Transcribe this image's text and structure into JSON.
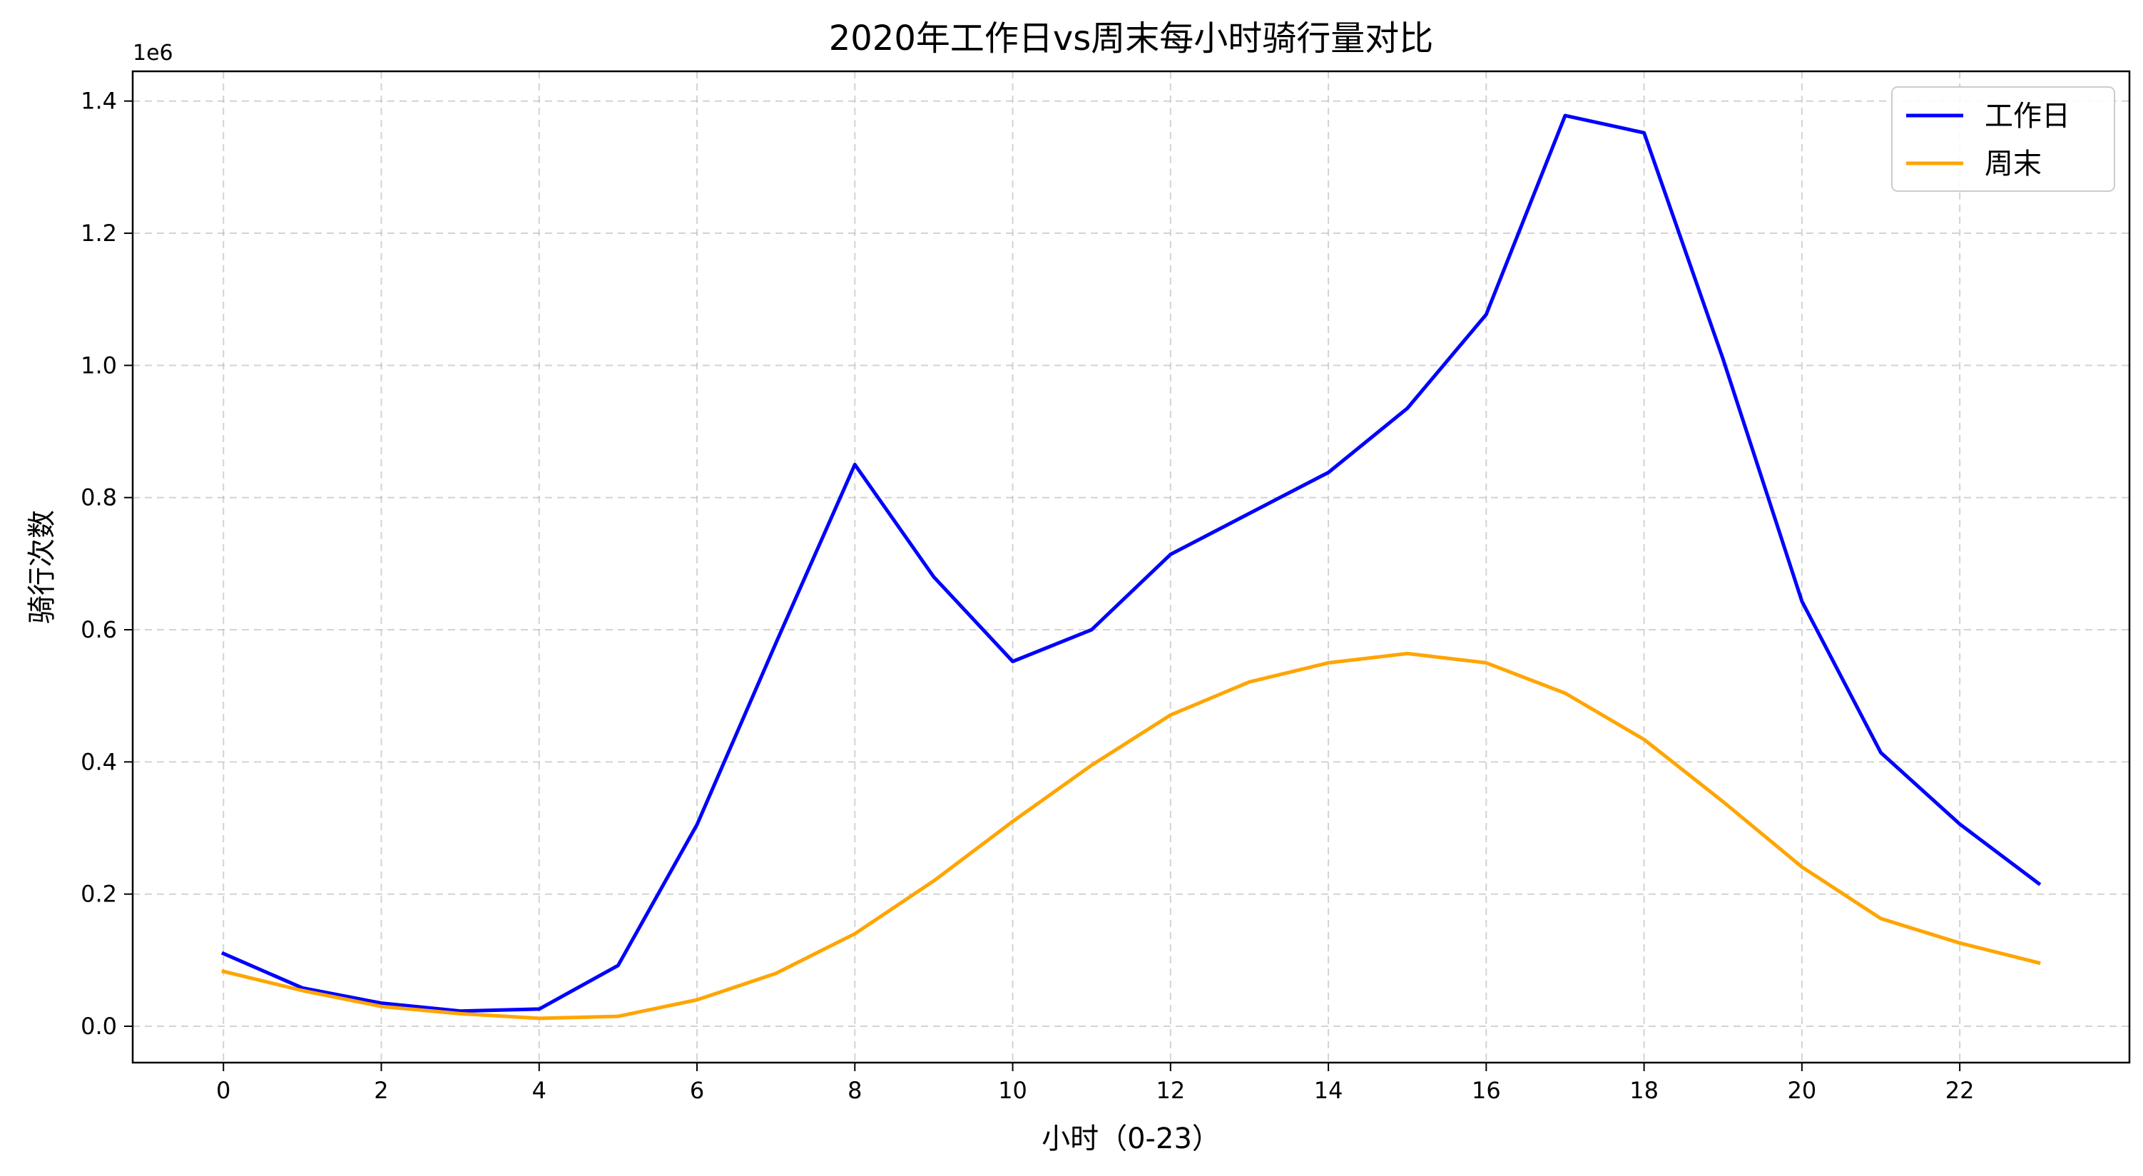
{
  "chart_data": {
    "type": "line",
    "title": "2020年工作日vs周末每小时骑行量对比",
    "xlabel": "小时（0-23）",
    "ylabel": "骑行次数",
    "y_offset_label": "1e6",
    "x": [
      0,
      1,
      2,
      3,
      4,
      5,
      6,
      7,
      8,
      9,
      10,
      11,
      12,
      13,
      14,
      15,
      16,
      17,
      18,
      19,
      20,
      21,
      22,
      23
    ],
    "x_ticks": [
      0,
      2,
      4,
      6,
      8,
      10,
      12,
      14,
      16,
      18,
      20,
      22
    ],
    "x_tick_labels": [
      "0",
      "2",
      "4",
      "6",
      "8",
      "10",
      "12",
      "14",
      "16",
      "18",
      "20",
      "22"
    ],
    "y_ticks": [
      0,
      0.2,
      0.4,
      0.6,
      0.8,
      1.0,
      1.2,
      1.4
    ],
    "y_tick_labels": [
      "0.0",
      "0.2",
      "0.4",
      "0.6",
      "0.8",
      "1.0",
      "1.2",
      "1.4"
    ],
    "xlim": [
      -1.15,
      24.15
    ],
    "ylim": [
      -0.055,
      1.445
    ],
    "grid": true,
    "legend_position": "top-right",
    "series": [
      {
        "name": "工作日",
        "color": "#0000ff",
        "values": [
          0.11,
          0.058,
          0.035,
          0.023,
          0.026,
          0.092,
          0.305,
          0.58,
          0.85,
          0.68,
          0.552,
          0.6,
          0.714,
          0.776,
          0.838,
          0.935,
          1.077,
          1.378,
          1.352,
          1.01,
          0.643,
          0.414,
          0.306,
          0.216
        ]
      },
      {
        "name": "周末",
        "color": "#ffa500",
        "values": [
          0.083,
          0.054,
          0.03,
          0.019,
          0.012,
          0.015,
          0.04,
          0.08,
          0.14,
          0.22,
          0.31,
          0.395,
          0.471,
          0.521,
          0.55,
          0.564,
          0.55,
          0.504,
          0.434,
          0.34,
          0.241,
          0.163,
          0.126,
          0.096
        ]
      }
    ]
  }
}
